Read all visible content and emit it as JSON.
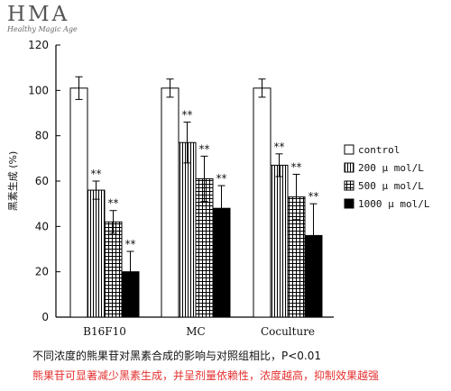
{
  "logo": {
    "main": "HMA",
    "sub": "Healthy Magic Age"
  },
  "chart_data": {
    "type": "bar",
    "title": "",
    "xlabel": "",
    "ylabel": "黑素生成 (%)",
    "ylim": [
      0,
      120
    ],
    "yticks": [
      0,
      20,
      40,
      60,
      80,
      100,
      120
    ],
    "grid": false,
    "legend_position": "right",
    "categories": [
      "B16F10",
      "MC",
      "Coculture"
    ],
    "series": [
      {
        "name": "control",
        "pattern": "white",
        "values": [
          101,
          101,
          101
        ],
        "errors": [
          5,
          4,
          4
        ],
        "labels": [
          "",
          "",
          ""
        ]
      },
      {
        "name": "200 μ mol/L",
        "pattern": "vlines",
        "values": [
          56,
          77,
          67
        ],
        "errors": [
          4,
          9,
          5
        ],
        "labels": [
          "**",
          "**",
          "**"
        ]
      },
      {
        "name": "500 μ mol/L",
        "pattern": "grid",
        "values": [
          42,
          61,
          53
        ],
        "errors": [
          5,
          10,
          10
        ],
        "labels": [
          "**",
          "**",
          "**"
        ]
      },
      {
        "name": "1000 μ mol/L",
        "pattern": "black",
        "values": [
          20,
          48,
          36
        ],
        "errors": [
          9,
          10,
          14
        ],
        "labels": [
          "**",
          "**",
          "**"
        ]
      }
    ]
  },
  "caption": "不同浓度的熊果苷对黑素合成的影响与对照组相比，P<0.01",
  "note": "熊果苷可显著减少黑素生成，并呈剂量依赖性，浓度越高，抑制效果越强"
}
